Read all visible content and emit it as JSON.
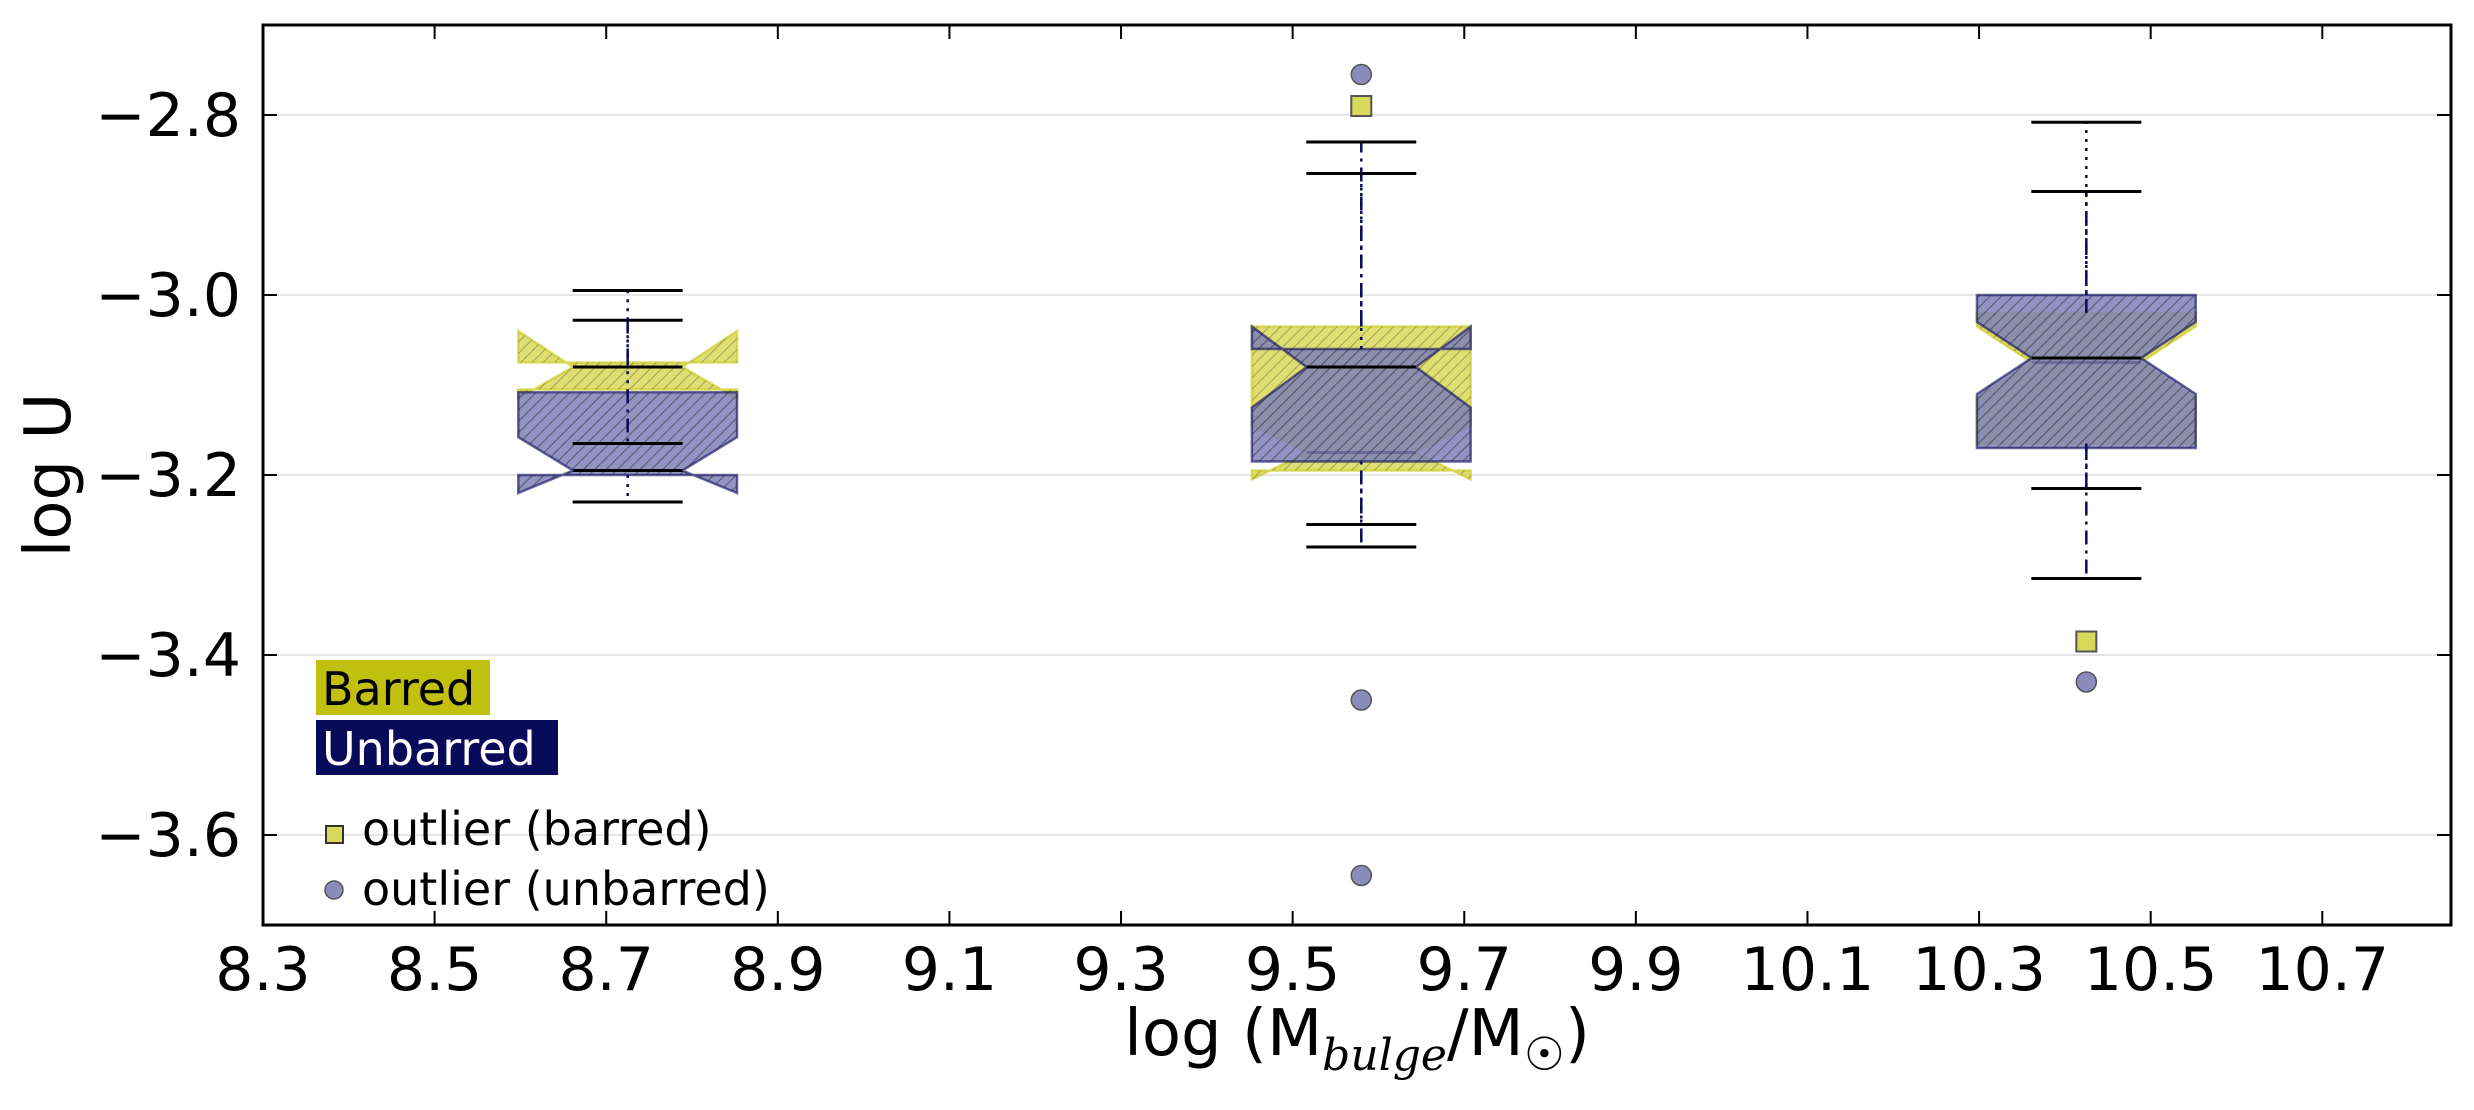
{
  "chart_data": {
    "type": "box",
    "xlabel_prefix": "log (M",
    "xlabel_subscript": "bulge",
    "xlabel_mid": "/M",
    "xlabel_subscript2": "☉",
    "xlabel_suffix": ")",
    "ylabel": "log U",
    "xlim": [
      8.3,
      10.85
    ],
    "ylim": [
      -3.7,
      -2.7
    ],
    "xticks": [
      8.3,
      8.5,
      8.7,
      8.9,
      9.1,
      9.3,
      9.5,
      9.7,
      9.9,
      10.1,
      10.3,
      10.5,
      10.7
    ],
    "xtick_labels": [
      "8.3",
      "8.5",
      "8.7",
      "8.9",
      "9.1",
      "9.3",
      "9.5",
      "9.7",
      "9.9",
      "10.1",
      "10.3",
      "10.5",
      "10.7"
    ],
    "yticks": [
      -2.8,
      -3.0,
      -3.2,
      -3.4,
      -3.6
    ],
    "ytick_labels": [
      "−2.8",
      "−3.0",
      "−3.2",
      "−3.4",
      "−3.6"
    ],
    "grid": "horizontal",
    "box_width": 0.255,
    "series": [
      {
        "name": "Barred",
        "color": "#c8c814",
        "fill": "#d8d85a",
        "outlier_marker": "square",
        "boxes": [
          {
            "x": 8.725,
            "q1": -3.105,
            "median": -3.08,
            "q3": -3.075,
            "notch_low": -3.115,
            "notch_high": -3.04,
            "whisker_low": -3.165,
            "whisker_high": -3.028,
            "outliers": []
          },
          {
            "x": 9.58,
            "q1": -3.195,
            "median": -3.175,
            "q3": -3.035,
            "notch_low": -3.205,
            "notch_high": -3.145,
            "whisker_low": -3.28,
            "whisker_high": -2.83,
            "outliers": [
              -2.79
            ]
          },
          {
            "x": 10.425,
            "q1": -3.165,
            "median": -3.075,
            "q3": -3.02,
            "notch_low": -3.115,
            "notch_high": -3.035,
            "whisker_low": -3.315,
            "whisker_high": -2.885,
            "outliers": [
              -3.385
            ]
          }
        ]
      },
      {
        "name": "Unbarred",
        "color": "#0a0a5a",
        "fill": "#7f80b8",
        "outlier_marker": "circle",
        "boxes": [
          {
            "x": 8.725,
            "q1": -3.2,
            "median": -3.195,
            "q3": -3.108,
            "notch_low": -3.22,
            "notch_high": -3.158,
            "whisker_low": -3.23,
            "whisker_high": -2.995,
            "outliers": []
          },
          {
            "x": 9.58,
            "q1": -3.185,
            "median": -3.08,
            "q3": -3.06,
            "notch_low": -3.125,
            "notch_high": -3.035,
            "whisker_low": -3.255,
            "whisker_high": -2.865,
            "outliers": [
              -2.755,
              -3.45,
              -3.645
            ]
          },
          {
            "x": 10.425,
            "q1": -3.17,
            "median": -3.07,
            "q3": -3.0,
            "notch_low": -3.11,
            "notch_high": -3.03,
            "whisker_low": -3.215,
            "whisker_high": -2.808,
            "outliers": [
              -3.43
            ]
          }
        ]
      }
    ],
    "legend": {
      "placement": "lower-left",
      "patches": [
        {
          "label": "Barred",
          "bg": "#c2c00e",
          "fg": "#000000"
        },
        {
          "label": "Unbarred",
          "bg": "#0a0a5a",
          "fg": "#ffffff"
        }
      ],
      "markers": [
        {
          "label": "outlier (barred)",
          "marker": "square",
          "color": "#d8d85a"
        },
        {
          "label": "outlier (unbarred)",
          "marker": "circle",
          "color": "#8c8cbc"
        }
      ]
    }
  }
}
